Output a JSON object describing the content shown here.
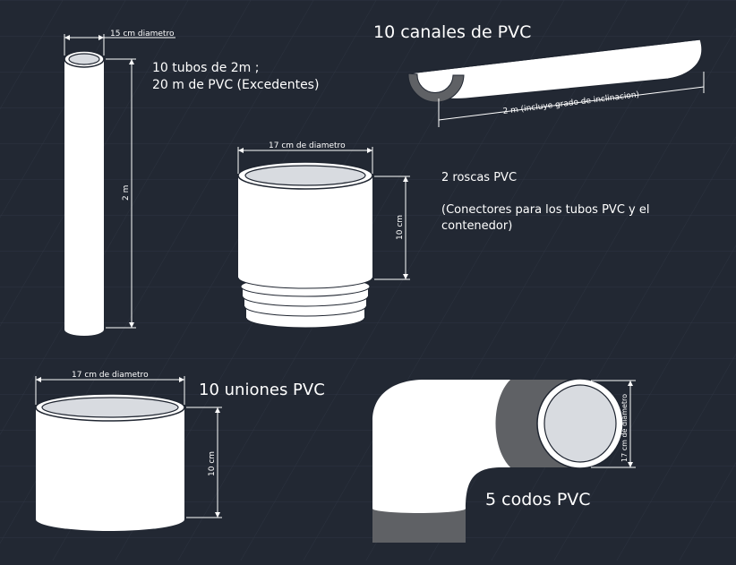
{
  "colors": {
    "background": "#222833",
    "grid": "#2e3542",
    "pipe_fill": "#ffffff",
    "pipe_inner": "#d8dbe0",
    "pipe_edge": "#1f2530",
    "shadow_gray": "#5f6165",
    "dimension": "#ffffff"
  },
  "tubos": {
    "diameter_label": "15 cm diametro",
    "length_label": "2 m",
    "title_line1": "10 tubos de 2m ;",
    "title_line2": "20 m de PVC (Excedentes)"
  },
  "canales": {
    "title": "10 canales de PVC",
    "length_label": "2 m (incluye grado de inclinacion)"
  },
  "roscas": {
    "diameter_label": "17 cm de diametro",
    "height_label": "10 cm",
    "title": "2 roscas PVC",
    "desc_line1": "(Conectores para los tubos PVC y el",
    "desc_line2": "contenedor)"
  },
  "uniones": {
    "diameter_label": "17 cm de diametro",
    "height_label": "10 cm",
    "title": "10 uniones PVC"
  },
  "codos": {
    "diameter_label": "17 cm de diametro",
    "title": "5 codos PVC"
  }
}
